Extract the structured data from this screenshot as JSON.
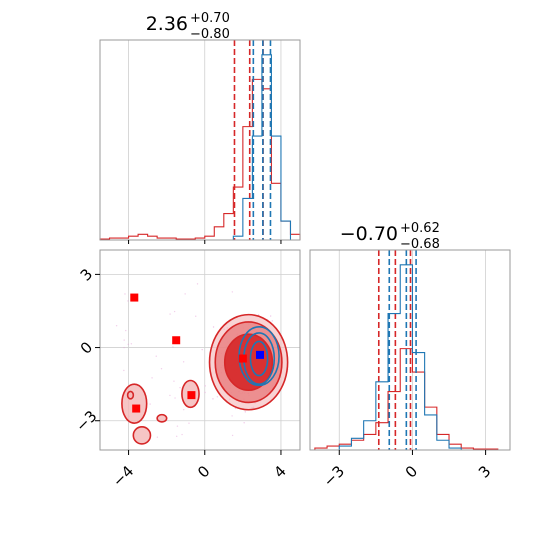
{
  "chart_data": [
    {
      "type": "histogram",
      "panel": "marginal-param-1",
      "title": {
        "value": "2.36",
        "plus": "+0.70",
        "minus": "−0.80"
      },
      "xlim": [
        -5.5,
        5.0
      ],
      "grid": true,
      "series": [
        {
          "color": "#d62728",
          "bin_edges": [
            -5.5,
            -5.0,
            -4.5,
            -4.0,
            -3.5,
            -3.0,
            -2.5,
            -2.0,
            -1.5,
            -1.0,
            -0.5,
            0.0,
            0.5,
            1.0,
            1.5,
            2.0,
            2.5,
            3.0,
            3.5,
            4.0,
            4.5,
            5.0
          ],
          "counts": [
            0.5,
            1,
            1,
            2,
            3,
            2,
            1,
            1,
            0.5,
            0.5,
            1,
            2,
            7,
            14,
            28,
            60,
            85,
            80,
            30,
            10,
            3
          ],
          "quantiles": [
            1.56,
            2.36,
            3.06
          ]
        },
        {
          "color": "#1f77b4",
          "bin_edges": [
            1.5,
            2.0,
            2.5,
            3.0,
            3.5,
            4.0,
            4.5
          ],
          "counts": [
            2,
            22,
            55,
            98,
            55,
            10
          ],
          "quantiles": [
            2.55,
            3.05,
            3.45
          ]
        }
      ]
    },
    {
      "type": "histogram",
      "panel": "marginal-param-2",
      "title": {
        "value": "−0.70",
        "plus": "+0.62",
        "minus": "−0.68"
      },
      "xlim": [
        -4.2,
        4.0
      ],
      "xticks": [
        -3,
        0,
        3
      ],
      "xtick_labels": [
        "−3",
        "0",
        "3"
      ],
      "grid": true,
      "series": [
        {
          "color": "#d62728",
          "bin_edges": [
            -4.0,
            -3.5,
            -3.0,
            -2.5,
            -2.0,
            -1.5,
            -1.0,
            -0.5,
            0.0,
            0.5,
            1.0,
            1.5,
            2.0,
            2.5,
            3.0,
            3.5
          ],
          "counts": [
            1,
            2,
            3,
            5,
            8,
            14,
            30,
            52,
            40,
            22,
            8,
            3,
            1,
            0.5,
            0.5
          ],
          "quantiles": [
            -1.38,
            -0.7,
            -0.08
          ]
        },
        {
          "color": "#1f77b4",
          "bin_edges": [
            -3.0,
            -2.5,
            -2.0,
            -1.5,
            -1.0,
            -0.5,
            0.0,
            0.5,
            1.0,
            1.5,
            2.0
          ],
          "counts": [
            2,
            6,
            15,
            35,
            70,
            95,
            50,
            18,
            5,
            1
          ],
          "quantiles": [
            -0.95,
            -0.25,
            0.15
          ]
        }
      ]
    },
    {
      "type": "scatter_contour",
      "panel": "joint-param-1-param-2",
      "xlim": [
        -5.5,
        5.0
      ],
      "ylim": [
        -4.2,
        4.0
      ],
      "xticks": [
        -4,
        0,
        4
      ],
      "xtick_labels": [
        "−4",
        "0",
        "4"
      ],
      "yticks": [
        -3,
        0,
        3
      ],
      "ytick_labels": [
        "−3",
        "0",
        "3"
      ],
      "grid": true,
      "red_markers": [
        {
          "x": -3.7,
          "y": 2.05
        },
        {
          "x": -1.5,
          "y": 0.3
        },
        {
          "x": -0.7,
          "y": -1.95
        },
        {
          "x": -3.6,
          "y": -2.5
        },
        {
          "x": 2.0,
          "y": -0.45
        }
      ],
      "blue_markers": [
        {
          "x": 2.9,
          "y": -0.3
        }
      ],
      "red_contours": [
        {
          "cx": 2.3,
          "cy": -0.6,
          "rx": 1.25,
          "ry": 1.15,
          "fill": "#d62728",
          "opacity": 0.9
        },
        {
          "cx": 2.3,
          "cy": -0.6,
          "rx": 1.75,
          "ry": 1.65,
          "fill": "#e8787a",
          "opacity": 0.75
        },
        {
          "cx": 2.3,
          "cy": -0.6,
          "rx": 2.05,
          "ry": 1.95,
          "fill": "#f4b6b7",
          "opacity": 0.6
        },
        {
          "cx": -3.7,
          "cy": -2.3,
          "rx": 0.65,
          "ry": 0.8,
          "fill": "#f4b6b7",
          "opacity": 0.8
        },
        {
          "cx": -0.75,
          "cy": -1.9,
          "rx": 0.45,
          "ry": 0.55,
          "fill": "#f4b6b7",
          "opacity": 0.8
        },
        {
          "cx": -3.3,
          "cy": -3.6,
          "rx": 0.45,
          "ry": 0.35,
          "fill": "#f4b6b7",
          "opacity": 0.8
        },
        {
          "cx": -2.25,
          "cy": -2.9,
          "rx": 0.25,
          "ry": 0.15,
          "fill": "#f4b6b7",
          "opacity": 0.8
        },
        {
          "cx": -3.9,
          "cy": -1.95,
          "rx": 0.15,
          "ry": 0.15,
          "fill": "#f4b6b7",
          "opacity": 0.8
        }
      ],
      "blue_contours": [
        {
          "cx": 2.85,
          "cy": -0.45,
          "rx": 0.45,
          "ry": 0.7
        },
        {
          "cx": 2.85,
          "cy": -0.45,
          "rx": 0.8,
          "ry": 1.05
        },
        {
          "cx": 2.85,
          "cy": -0.35,
          "rx": 1.05,
          "ry": 1.2
        }
      ]
    }
  ]
}
